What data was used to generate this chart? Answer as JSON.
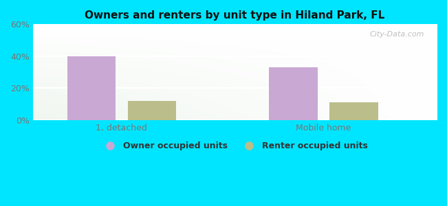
{
  "title": "Owners and renters by unit type in Hiland Park, FL",
  "categories": [
    "1, detached",
    "Mobile home"
  ],
  "owner_values": [
    40,
    33
  ],
  "renter_values": [
    12,
    11
  ],
  "owner_color": "#c9a8d4",
  "renter_color": "#bbbe8a",
  "ylim": [
    0,
    60
  ],
  "yticks": [
    0,
    20,
    40,
    60
  ],
  "ytick_labels": [
    "0%",
    "20%",
    "40%",
    "60%"
  ],
  "bg_left": "#c8e6c4",
  "bg_right": "#f0faf0",
  "bg_top": "#f8fef8",
  "outer_bg": "#00e5ff",
  "watermark": "City-Data.com",
  "legend_owner": "Owner occupied units",
  "legend_renter": "Renter occupied units",
  "bar_width": 0.12,
  "x_positions": [
    0.22,
    0.72
  ],
  "xlim": [
    0.0,
    1.0
  ],
  "tick_color": "#777777",
  "title_fontsize": 11,
  "tick_fontsize": 9,
  "legend_fontsize": 9
}
